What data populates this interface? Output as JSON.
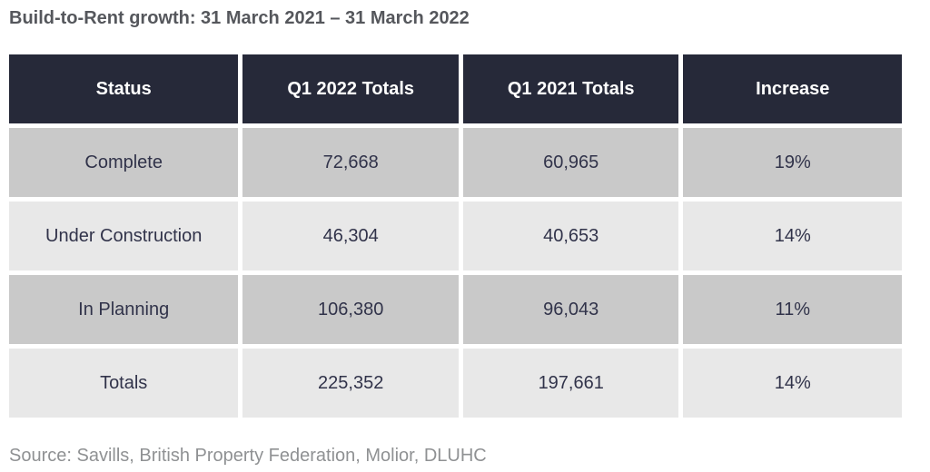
{
  "title": "Build-to-Rent growth: 31 March 2021 – 31 March 2022",
  "source": "Source: Savills, British Property Federation, Molior, DLUHC",
  "chart_data": {
    "type": "table",
    "title": "Build-to-Rent growth: 31 March 2021 – 31 March 2022",
    "columns": [
      "Status",
      "Q1 2022 Totals",
      "Q1 2021 Totals",
      "Increase"
    ],
    "rows": [
      [
        "Complete",
        "72,668",
        "60,965",
        "19%"
      ],
      [
        "Under Construction",
        "46,304",
        "40,653",
        "14%"
      ],
      [
        "In Planning",
        "106,380",
        "96,043",
        "11%"
      ],
      [
        "Totals",
        "225,352",
        "197,661",
        "14%"
      ]
    ]
  },
  "colors": {
    "header_bg": "#262939",
    "header_text": "#ffffff",
    "row_dark": "#c9c9c9",
    "row_light": "#e8e8e8",
    "cell_text": "#31334a",
    "title_text": "#55575c",
    "source_text": "#8f9193",
    "page_bg": "#ffffff"
  }
}
